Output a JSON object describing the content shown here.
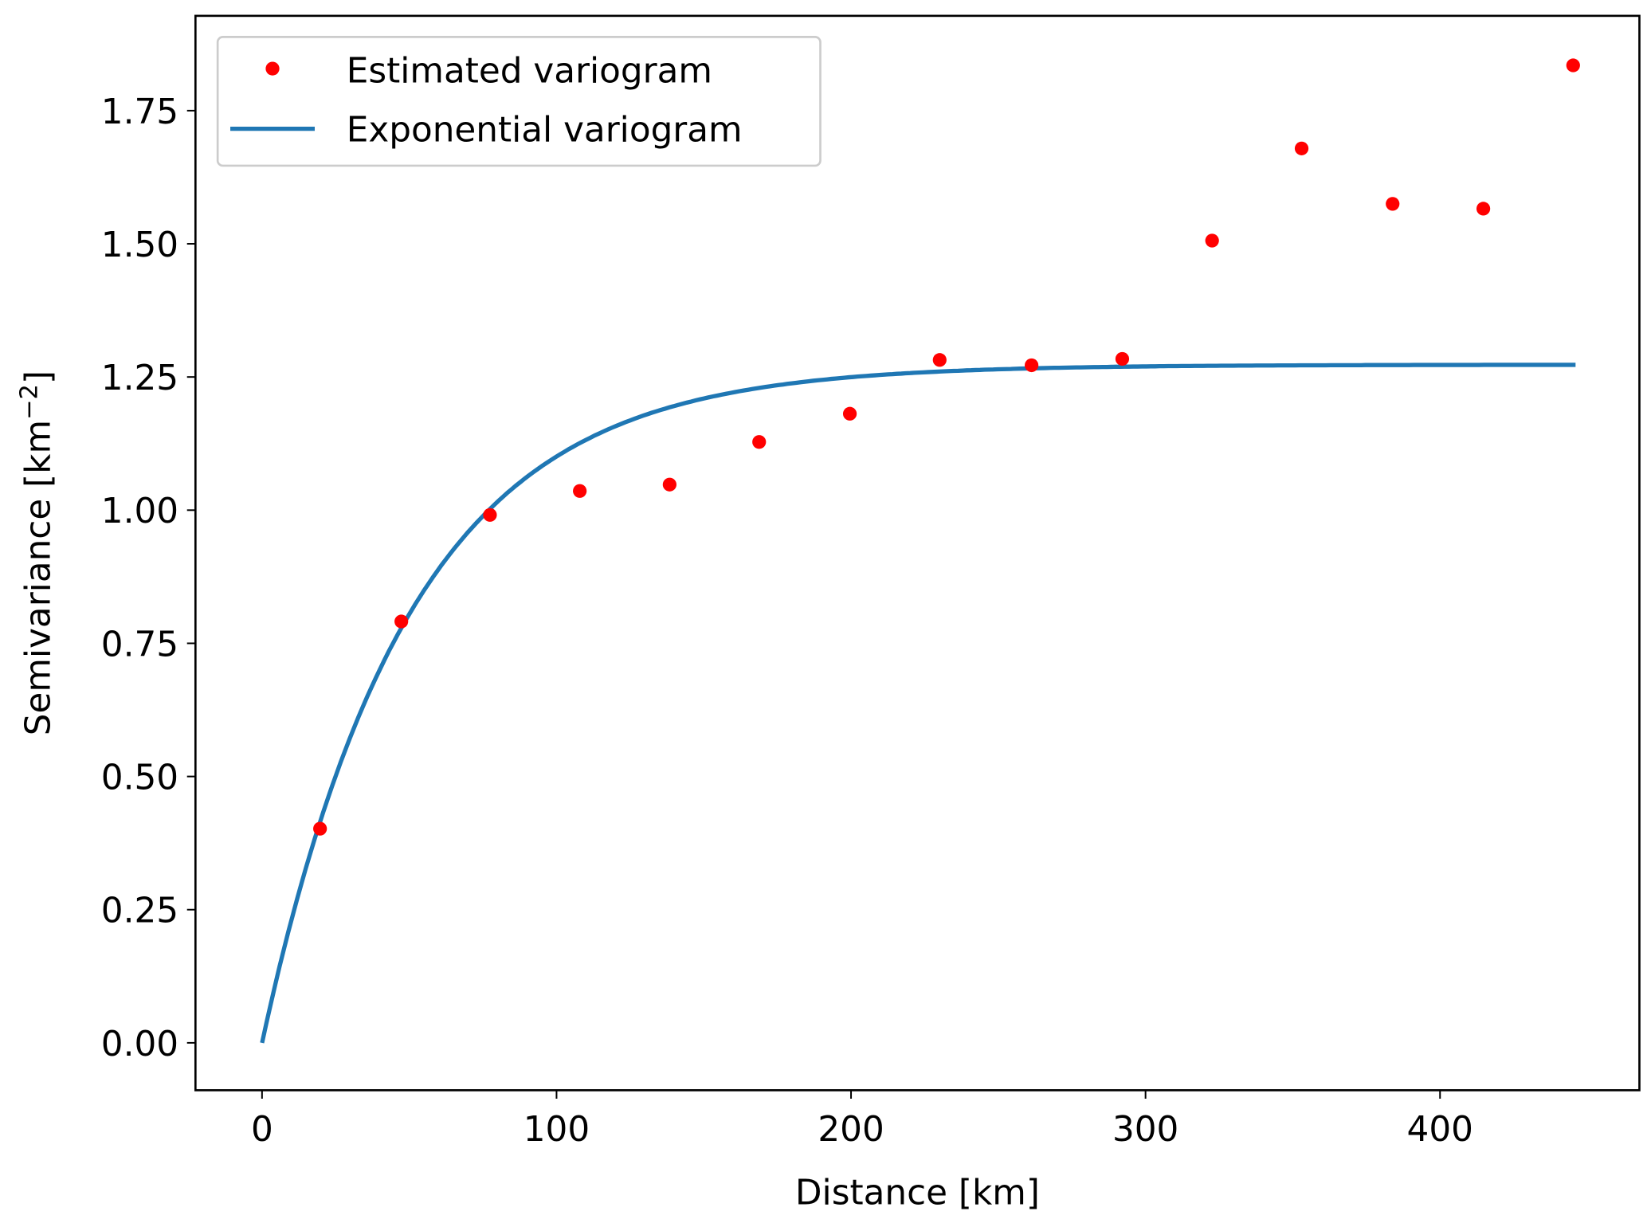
{
  "chart_data": {
    "type": "scatter",
    "title": "",
    "xlabel": "Distance [km]",
    "ylabel": "Semivariance [km",
    "ylabel_superscript": "−2",
    "ylabel_suffix": "]",
    "xlim": [
      -22.6,
      467.7
    ],
    "ylim": [
      -0.089,
      1.928
    ],
    "xticks": [
      0,
      100,
      200,
      300,
      400
    ],
    "xtick_labels": [
      "0",
      "100",
      "200",
      "300",
      "400"
    ],
    "yticks": [
      0,
      0.25,
      0.5,
      0.75,
      1.0,
      1.25,
      1.5,
      1.75
    ],
    "ytick_labels": [
      "0.00",
      "0.25",
      "0.50",
      "0.75",
      "1.00",
      "1.25",
      "1.50",
      "1.75"
    ],
    "grid": false,
    "legend_position": "top-left",
    "series": [
      {
        "name": "Estimated variogram",
        "kind": "scatter",
        "color": "#ff0000",
        "x": [
          19.7,
          47.3,
          77.4,
          107.9,
          138.4,
          168.8,
          199.6,
          230.1,
          261.3,
          292.1,
          322.6,
          353.0,
          383.9,
          414.7,
          445.2
        ],
        "y": [
          0.402,
          0.791,
          0.991,
          1.036,
          1.048,
          1.128,
          1.181,
          1.282,
          1.272,
          1.284,
          1.506,
          1.679,
          1.575,
          1.566,
          1.835
        ]
      },
      {
        "name": "Exponential variogram",
        "kind": "line",
        "color": "#1f77b4",
        "model": {
          "sill": 1.273,
          "range": 50,
          "nugget": 0,
          "x_from": 0,
          "x_to": 446
        }
      }
    ]
  }
}
